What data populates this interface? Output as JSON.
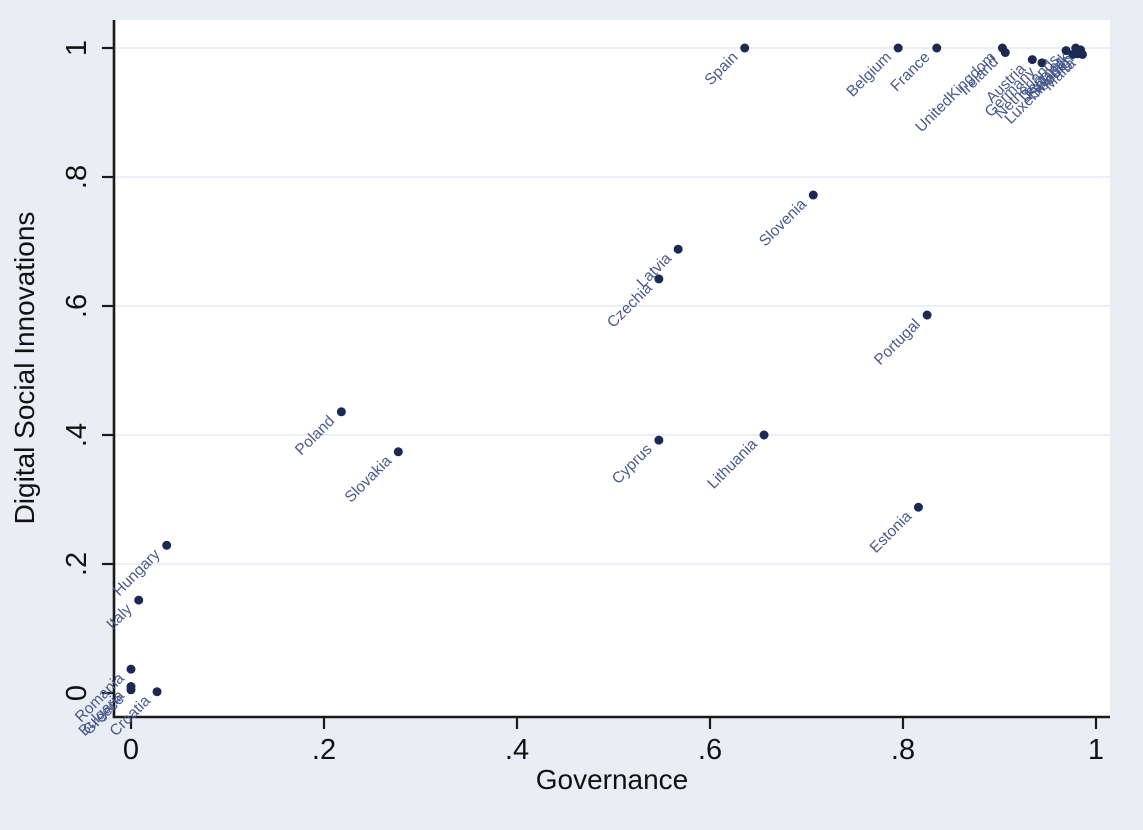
{
  "figure": {
    "background_color": "#e9eef5",
    "plot_background_color": "#ffffff"
  },
  "chart_data": {
    "type": "scatter",
    "title": "",
    "xlabel": "Governance",
    "ylabel": "Digital Social Innovations",
    "xlim": [
      0,
      1
    ],
    "ylim": [
      0,
      1
    ],
    "grid": "horizontal",
    "legend": "none",
    "xticks": {
      "values": [
        0,
        0.2,
        0.4,
        0.6,
        0.8,
        1
      ],
      "labels": [
        "0",
        ".2",
        ".4",
        ".6",
        ".8",
        "1"
      ]
    },
    "yticks": {
      "values": [
        0,
        0.2,
        0.4,
        0.6,
        0.8,
        1
      ],
      "labels": [
        "0",
        ".2",
        ".4",
        ".6",
        ".8",
        "1"
      ]
    },
    "points": [
      {
        "label": "Spain",
        "x": 0.636,
        "y": 1.0
      },
      {
        "label": "Belgium",
        "x": 0.795,
        "y": 1.0
      },
      {
        "label": "France",
        "x": 0.835,
        "y": 1.0
      },
      {
        "label": "UnitedKingdom",
        "x": 0.903,
        "y": 1.0
      },
      {
        "label": "Ireland",
        "x": 0.906,
        "y": 0.993
      },
      {
        "label": "Austria",
        "x": 0.934,
        "y": 0.982
      },
      {
        "label": "Germany",
        "x": 0.944,
        "y": 0.977
      },
      {
        "label": "Netherlands",
        "x": 0.969,
        "y": 0.996
      },
      {
        "label": "Denmark",
        "x": 0.979,
        "y": 1.0
      },
      {
        "label": "Sweden",
        "x": 0.984,
        "y": 0.997
      },
      {
        "label": "Finland",
        "x": 0.976,
        "y": 0.99
      },
      {
        "label": "Luxembourg",
        "x": 0.981,
        "y": 0.991
      },
      {
        "label": "Malta",
        "x": 0.986,
        "y": 0.99
      },
      {
        "label": "Slovenia",
        "x": 0.707,
        "y": 0.772
      },
      {
        "label": "Latvia",
        "x": 0.567,
        "y": 0.688
      },
      {
        "label": "Czechia",
        "x": 0.547,
        "y": 0.642
      },
      {
        "label": "Portugal",
        "x": 0.825,
        "y": 0.586
      },
      {
        "label": "Poland",
        "x": 0.218,
        "y": 0.436
      },
      {
        "label": "Slovakia",
        "x": 0.277,
        "y": 0.374
      },
      {
        "label": "Cyprus",
        "x": 0.547,
        "y": 0.392
      },
      {
        "label": "Lithuania",
        "x": 0.656,
        "y": 0.4
      },
      {
        "label": "Estonia",
        "x": 0.816,
        "y": 0.288
      },
      {
        "label": "Hungary",
        "x": 0.037,
        "y": 0.229
      },
      {
        "label": "Italy",
        "x": 0.008,
        "y": 0.144
      },
      {
        "label": "Romania",
        "x": 0.0,
        "y": 0.037
      },
      {
        "label": "Bulgaria",
        "x": 0.0,
        "y": 0.01
      },
      {
        "label": "Greece",
        "x": 0.0,
        "y": 0.005
      },
      {
        "label": "Croatia",
        "x": 0.027,
        "y": 0.002
      }
    ],
    "colors": {
      "dot": "#1c2a52",
      "country_label": "#4a5a8c",
      "axis": "#1a1a1a",
      "grid": "#e2eaf2",
      "tick_label": "#111111",
      "axis_title": "#111111"
    }
  }
}
